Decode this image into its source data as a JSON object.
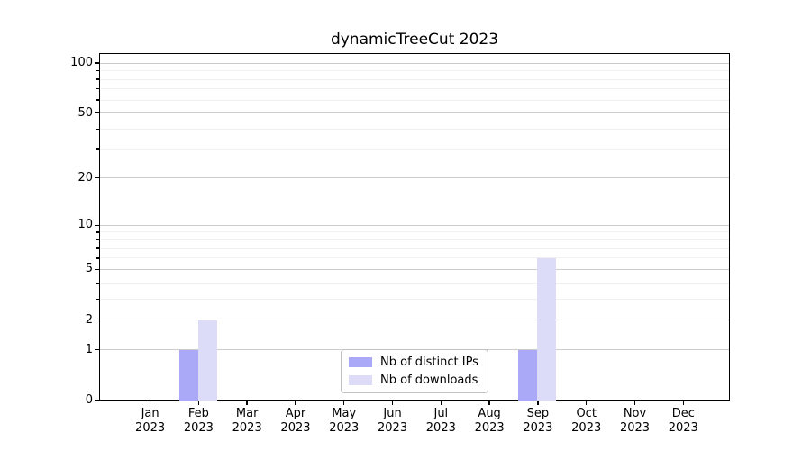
{
  "title": "dynamicTreeCut 2023",
  "chart_data": {
    "type": "bar",
    "title": "dynamicTreeCut 2023",
    "categories": [
      "Jan 2023",
      "Feb 2023",
      "Mar 2023",
      "Apr 2023",
      "May 2023",
      "Jun 2023",
      "Jul 2023",
      "Aug 2023",
      "Sep 2023",
      "Oct 2023",
      "Nov 2023",
      "Dec 2023"
    ],
    "series": [
      {
        "name": "Nb of distinct IPs",
        "color": "#a9a9f7",
        "values": [
          0,
          1,
          0,
          0,
          0,
          0,
          0,
          0,
          1,
          0,
          0,
          0
        ]
      },
      {
        "name": "Nb of downloads",
        "color": "#dcdcf8",
        "values": [
          0,
          2,
          0,
          0,
          0,
          0,
          0,
          0,
          6,
          0,
          0,
          0
        ]
      }
    ],
    "xlabel": "",
    "ylabel": "",
    "yscale": "log1p",
    "yticks_major": [
      0,
      1,
      2,
      5,
      10,
      20,
      50,
      100
    ],
    "yticks_minor": [
      3,
      4,
      6,
      7,
      8,
      9,
      30,
      40,
      60,
      70,
      80,
      90
    ],
    "ylim": [
      0,
      115
    ],
    "grid": "on",
    "legend_position": "bottom-center"
  },
  "colors": {
    "bar_ips": "#a9a9f7",
    "bar_downloads": "#dcdcf8",
    "grid_major": "#cccccc",
    "grid_minor": "#f0f0f0",
    "axis": "#000000",
    "background": "#ffffff",
    "legend_border": "#c0c0c0"
  }
}
